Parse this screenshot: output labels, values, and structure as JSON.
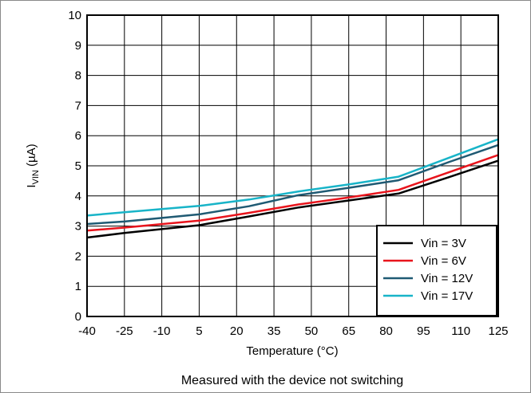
{
  "chart_data": {
    "type": "line",
    "xlabel": "Temperature (°C)",
    "ylabel": "I",
    "ylabel_sub": "VIN",
    "ylabel_unit": " (µA)",
    "caption": "Measured with the device not switching",
    "xlim": [
      -40,
      125
    ],
    "ylim": [
      0,
      10
    ],
    "x_ticks": [
      -40,
      -25,
      -10,
      5,
      20,
      35,
      50,
      65,
      80,
      95,
      110,
      125
    ],
    "x_tick_labels": [
      "-40",
      "-25",
      "-10",
      "5",
      "20",
      "35",
      "50",
      "65",
      "80",
      "95",
      "110",
      "125"
    ],
    "y_ticks": [
      0,
      1,
      2,
      3,
      4,
      5,
      6,
      7,
      8,
      9,
      10
    ],
    "y_tick_labels": [
      "0",
      "1",
      "2",
      "3",
      "4",
      "5",
      "6",
      "7",
      "8",
      "9",
      "10"
    ],
    "grid": true,
    "legend_position": "bottom-right",
    "series": [
      {
        "name": "Vin = 3V",
        "color": "#000000",
        "points": [
          [
            -40,
            2.62
          ],
          [
            -25,
            2.77
          ],
          [
            5,
            3.03
          ],
          [
            25,
            3.32
          ],
          [
            45,
            3.62
          ],
          [
            65,
            3.85
          ],
          [
            85,
            4.08
          ],
          [
            105,
            4.62
          ],
          [
            125,
            5.17
          ]
        ]
      },
      {
        "name": "Vin = 6V",
        "color": "#e8141c",
        "points": [
          [
            -40,
            2.85
          ],
          [
            -25,
            2.95
          ],
          [
            5,
            3.18
          ],
          [
            25,
            3.44
          ],
          [
            45,
            3.72
          ],
          [
            65,
            3.95
          ],
          [
            85,
            4.2
          ],
          [
            105,
            4.78
          ],
          [
            125,
            5.36
          ]
        ]
      },
      {
        "name": "Vin = 12V",
        "color": "#1f5a73",
        "points": [
          [
            -40,
            3.07
          ],
          [
            -25,
            3.15
          ],
          [
            5,
            3.39
          ],
          [
            25,
            3.66
          ],
          [
            45,
            4.03
          ],
          [
            65,
            4.27
          ],
          [
            85,
            4.52
          ],
          [
            105,
            5.12
          ],
          [
            125,
            5.69
          ]
        ]
      },
      {
        "name": "Vin = 17V",
        "color": "#18b4c8",
        "points": [
          [
            -40,
            3.35
          ],
          [
            -25,
            3.46
          ],
          [
            5,
            3.67
          ],
          [
            25,
            3.88
          ],
          [
            45,
            4.15
          ],
          [
            65,
            4.38
          ],
          [
            85,
            4.64
          ],
          [
            105,
            5.26
          ],
          [
            125,
            5.88
          ]
        ]
      }
    ]
  }
}
